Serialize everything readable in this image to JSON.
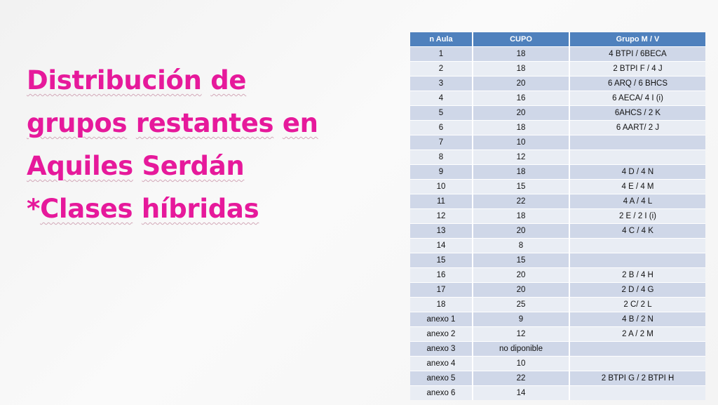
{
  "title": {
    "lines": [
      [
        "Distribución",
        "de"
      ],
      [
        "grupos",
        "restantes",
        "en"
      ],
      [
        "Aquiles",
        "Serdán"
      ],
      [
        "*",
        "Clases",
        "híbridas"
      ]
    ]
  },
  "colors": {
    "title": "#e6199b",
    "header_bg": "#4f81bd",
    "row_odd": "#cfd7e8",
    "row_even": "#e9edf4"
  },
  "table": {
    "headers": [
      "n Aula",
      "CUPO",
      "Grupo M / V"
    ],
    "rows": [
      [
        "1",
        "18",
        "4 BTPI / 6BECA"
      ],
      [
        "2",
        "18",
        "2 BTPI F / 4 J"
      ],
      [
        "3",
        "20",
        "6 ARQ / 6 BHCS"
      ],
      [
        "4",
        "16",
        "6 AECA/ 4 I (i)"
      ],
      [
        "5",
        "20",
        "6AHCS / 2 K"
      ],
      [
        "6",
        "18",
        "6 AART/ 2 J"
      ],
      [
        "7",
        "10",
        ""
      ],
      [
        "8",
        "12",
        ""
      ],
      [
        "9",
        "18",
        "4 D / 4 N"
      ],
      [
        "10",
        "15",
        "4 E / 4 M"
      ],
      [
        "11",
        "22",
        "4 A / 4 L"
      ],
      [
        "12",
        "18",
        "2 E / 2 I (i)"
      ],
      [
        "13",
        "20",
        "4 C / 4 K"
      ],
      [
        "14",
        "8",
        ""
      ],
      [
        "15",
        "15",
        ""
      ],
      [
        "16",
        "20",
        "2 B / 4 H"
      ],
      [
        "17",
        "20",
        "2 D / 4 G"
      ],
      [
        "18",
        "25",
        "2 C/ 2 L"
      ],
      [
        "anexo 1",
        "9",
        "4 B / 2 N"
      ],
      [
        "anexo 2",
        "12",
        "2 A / 2 M"
      ],
      [
        "anexo 3",
        "no diponible",
        ""
      ],
      [
        "anexo 4",
        "10",
        ""
      ],
      [
        "anexo 5",
        "22",
        "2 BTPI G / 2 BTPI H"
      ],
      [
        "anexo 6",
        "14",
        ""
      ]
    ]
  }
}
